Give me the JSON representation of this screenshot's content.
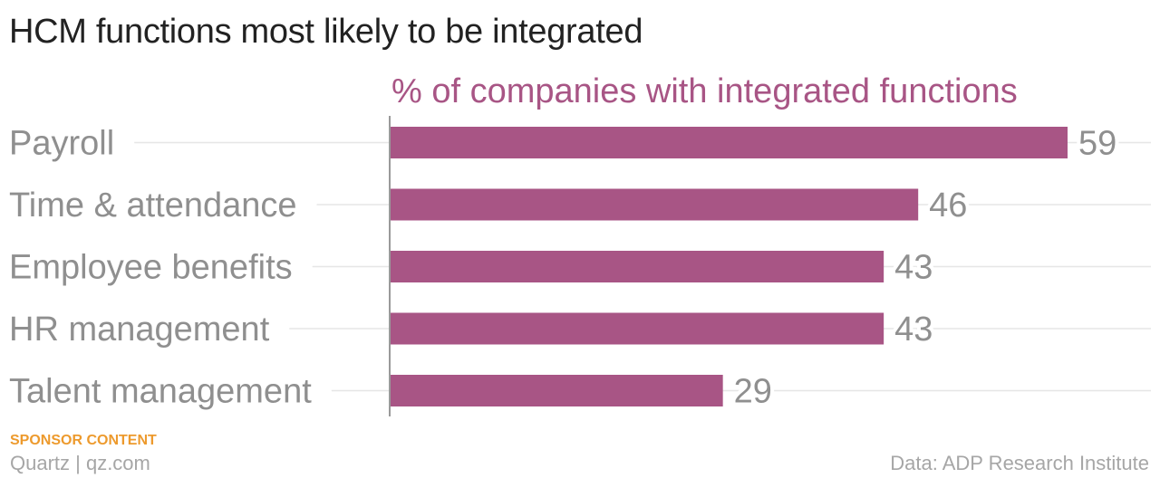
{
  "colors": {
    "bar": "#a85585",
    "subtitle": "#a85585",
    "sponsor": "#ed9a2d",
    "label": "#8f8f8f",
    "gridline": "#e6e6e6",
    "axis": "#9a9a9a"
  },
  "chart_data": {
    "type": "bar",
    "orientation": "horizontal",
    "title": "HCM functions most likely to be integrated",
    "subtitle": "% of companies with integrated functions",
    "categories": [
      "Payroll",
      "Time & attendance",
      "Employee benefits",
      "HR management",
      "Talent management"
    ],
    "values": [
      59,
      46,
      43,
      43,
      29
    ],
    "data_labels": [
      "59",
      "46",
      "43",
      "43",
      "29"
    ],
    "xlim": [
      0,
      59
    ],
    "grid": true,
    "legend": "none"
  },
  "footer": {
    "sponsor": "SPONSOR CONTENT",
    "brand": "Quartz | qz.com",
    "source": "Data: ADP Research Institute"
  }
}
